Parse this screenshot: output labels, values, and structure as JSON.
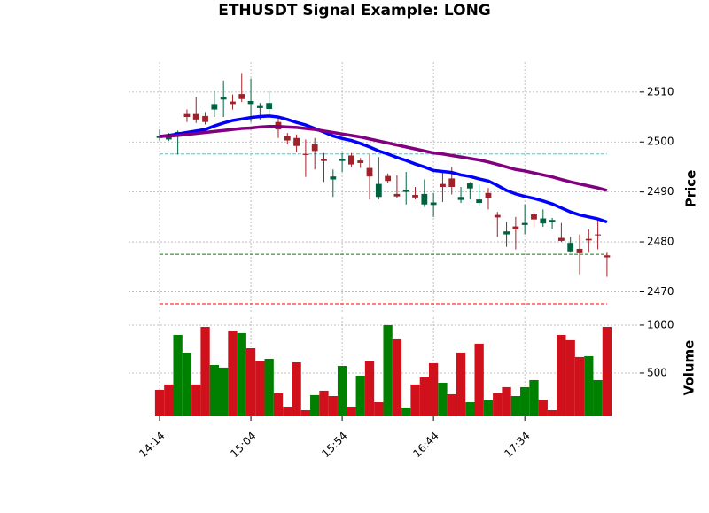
{
  "chart_data": {
    "type": "candlestick",
    "title": "ETHUSDT Signal Example: LONG",
    "price_label": "Price",
    "volume_label": "Volume",
    "up_color": "#006340",
    "down_color": "#a02128",
    "open": [
      2500.8,
      2500.5,
      2501.2,
      2505.6,
      2505.6,
      2505.2,
      2506.5,
      2508.5,
      2508.1,
      2509.6,
      2507.6,
      2506.8,
      2506.6,
      2504.0,
      2501.2,
      2500.8,
      2497.6,
      2499.5,
      2496.5,
      2492.5,
      2496.2,
      2497.3,
      2496.3,
      2494.8,
      2489.0,
      2493.2,
      2489.6,
      2490.0,
      2489.4,
      2487.5,
      2487.4,
      2491.6,
      2492.7,
      2488.4,
      2490.7,
      2487.8,
      2489.8,
      2485.4,
      2481.5,
      2483.1,
      2483.4,
      2485.5,
      2483.7,
      2484.0,
      2480.8,
      2478.1,
      2478.6,
      2480.6,
      2481.5,
      2477.3
    ],
    "high": [
      2502.5,
      2501.8,
      2502.3,
      2506.5,
      2509.0,
      2506.0,
      2510.2,
      2512.3,
      2509.5,
      2513.8,
      2512.7,
      2507.8,
      2510.2,
      2505.0,
      2501.8,
      2501.5,
      2500.5,
      2500.8,
      2497.8,
      2494.5,
      2497.8,
      2497.8,
      2496.8,
      2497.5,
      2497.0,
      2493.7,
      2493.3,
      2494.0,
      2491.0,
      2492.5,
      2489.8,
      2494.0,
      2495.0,
      2491.0,
      2492.0,
      2491.5,
      2490.8,
      2486.0,
      2484.0,
      2485.0,
      2487.5,
      2486.0,
      2486.5,
      2484.8,
      2483.8,
      2481.0,
      2481.5,
      2482.5,
      2484.5,
      2478.0
    ],
    "low": [
      2500.3,
      2500.2,
      2497.5,
      2504.0,
      2503.8,
      2503.5,
      2505.0,
      2505.0,
      2506.5,
      2508.0,
      2504.0,
      2504.5,
      2505.5,
      2500.8,
      2499.5,
      2498.0,
      2493.0,
      2494.5,
      2492.0,
      2489.0,
      2494.0,
      2495.0,
      2494.8,
      2488.5,
      2488.5,
      2491.8,
      2488.8,
      2487.5,
      2488.5,
      2487.0,
      2485.0,
      2488.0,
      2489.5,
      2487.8,
      2488.5,
      2487.3,
      2486.5,
      2481.0,
      2479.0,
      2478.5,
      2481.5,
      2483.0,
      2483.0,
      2482.5,
      2480.0,
      2478.0,
      2473.5,
      2478.0,
      2478.5,
      2473.0
    ],
    "close": [
      2501.2,
      2501.3,
      2502.0,
      2505.0,
      2504.5,
      2504.0,
      2507.6,
      2508.9,
      2507.6,
      2508.6,
      2508.2,
      2507.2,
      2507.8,
      2502.5,
      2500.3,
      2499.2,
      2497.4,
      2498.2,
      2496.2,
      2493.1,
      2496.6,
      2495.5,
      2495.8,
      2493.1,
      2491.6,
      2492.2,
      2489.1,
      2490.4,
      2488.9,
      2489.6,
      2487.9,
      2491.0,
      2491.0,
      2489.0,
      2491.7,
      2488.5,
      2488.8,
      2484.9,
      2482.1,
      2482.5,
      2483.8,
      2484.5,
      2484.7,
      2484.4,
      2480.2,
      2479.8,
      2477.9,
      2480.3,
      2481.3,
      2476.9
    ],
    "moving_averages": [
      {
        "color": "#0000ff",
        "values": [
          2501.1,
          2501.3,
          2501.6,
          2501.9,
          2502.2,
          2502.5,
          2503.2,
          2503.8,
          2504.3,
          2504.6,
          2504.9,
          2505.1,
          2505.2,
          2505.0,
          2504.5,
          2503.9,
          2503.4,
          2502.7,
          2502.0,
          2501.2,
          2500.7,
          2500.3,
          2499.7,
          2499.0,
          2498.2,
          2497.6,
          2496.9,
          2496.3,
          2495.6,
          2495.0,
          2494.3,
          2494.1,
          2493.9,
          2493.4,
          2493.1,
          2492.6,
          2492.2,
          2491.3,
          2490.3,
          2489.6,
          2489.1,
          2488.7,
          2488.2,
          2487.6,
          2486.8,
          2486.0,
          2485.4,
          2485.0,
          2484.6,
          2484.0
        ]
      },
      {
        "color": "#800080",
        "values": [
          2501.1,
          2501.2,
          2501.3,
          2501.5,
          2501.7,
          2501.9,
          2502.1,
          2502.3,
          2502.5,
          2502.7,
          2502.8,
          2503.0,
          2503.1,
          2503.1,
          2503.0,
          2502.9,
          2502.7,
          2502.5,
          2502.2,
          2501.9,
          2501.6,
          2501.3,
          2501.0,
          2500.6,
          2500.2,
          2499.8,
          2499.4,
          2499.0,
          2498.6,
          2498.2,
          2497.8,
          2497.6,
          2497.3,
          2497.0,
          2496.7,
          2496.4,
          2496.0,
          2495.5,
          2495.0,
          2494.5,
          2494.2,
          2493.8,
          2493.4,
          2493.0,
          2492.5,
          2492.0,
          2491.6,
          2491.2,
          2490.8,
          2490.3
        ]
      }
    ],
    "hlines": [
      {
        "value": 2497.6,
        "color": "#00e5e5"
      },
      {
        "value": 2477.5,
        "color": "#008000"
      },
      {
        "value": 2467.6,
        "color": "#ff0000"
      }
    ],
    "volume": [
      324,
      380,
      898,
      713,
      380,
      981,
      583,
      556,
      935,
      917,
      759,
      620,
      648,
      287,
      148,
      611,
      111,
      269,
      315,
      259,
      574,
      148,
      472,
      620,
      194,
      1000,
      852,
      139,
      380,
      454,
      602,
      398,
      278,
      713,
      194,
      806,
      213,
      287,
      352,
      259,
      352,
      426,
      222,
      111,
      898,
      843,
      667,
      676,
      426,
      981
    ],
    "volume_colors": [
      "#d0101b",
      "#d0101b",
      "#008000",
      "#008000",
      "#d0101b",
      "#d0101b",
      "#008000",
      "#008000",
      "#d0101b",
      "#008000",
      "#d0101b",
      "#d0101b",
      "#008000",
      "#d0101b",
      "#d0101b",
      "#d0101b",
      "#d0101b",
      "#008000",
      "#d0101b",
      "#d0101b",
      "#008000",
      "#d0101b",
      "#008000",
      "#d0101b",
      "#d0101b",
      "#008000",
      "#d0101b",
      "#008000",
      "#d0101b",
      "#d0101b",
      "#d0101b",
      "#008000",
      "#d0101b",
      "#d0101b",
      "#008000",
      "#d0101b",
      "#008000",
      "#d0101b",
      "#d0101b",
      "#008000",
      "#008000",
      "#008000",
      "#d0101b",
      "#d0101b",
      "#d0101b",
      "#d0101b",
      "#d0101b",
      "#008000",
      "#008000",
      "#d0101b"
    ],
    "xlim": [
      -3.4,
      52.6
    ],
    "xticks": [
      {
        "value": 0,
        "label": "14:14"
      },
      {
        "value": 10,
        "label": "15:04"
      },
      {
        "value": 20,
        "label": "15:54"
      },
      {
        "value": 30,
        "label": "16:44"
      },
      {
        "value": 40,
        "label": "17:34"
      }
    ],
    "ylim": [
      2466,
      2516
    ],
    "yticks": [
      2470,
      2480,
      2490,
      2500,
      2510
    ],
    "volume_ylim": [
      46,
      1083
    ],
    "volume_yticks": [
      500,
      1000
    ],
    "grid": true
  }
}
